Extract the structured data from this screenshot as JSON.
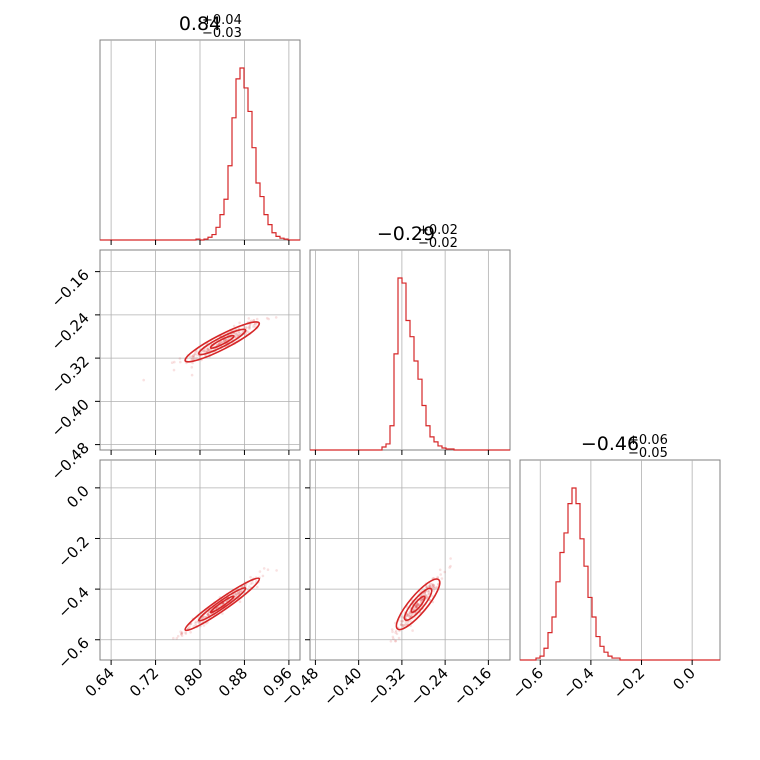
{
  "colors": {
    "accent": "#d62728",
    "grid": "#b0b0b0",
    "frame": "#808080"
  },
  "chart_data": {
    "type": "corner",
    "parameters": [
      {
        "title": {
          "value": "0.84",
          "plus": "+0.04",
          "minus": "−0.03"
        },
        "range": [
          0.62,
          0.98
        ]
      },
      {
        "title": {
          "value": "−0.29",
          "plus": "+0.02",
          "minus": "−0.02"
        },
        "range": [
          -0.49,
          -0.12
        ]
      },
      {
        "title": {
          "value": "−0.46",
          "plus": "+0.06",
          "minus": "−0.05"
        },
        "range": [
          -0.68,
          0.11
        ]
      }
    ],
    "ticks": [
      {
        "values": [
          0.64,
          0.72,
          0.8,
          0.88,
          0.96
        ],
        "labels": [
          "0.64",
          "0.72",
          "0.80",
          "0.88",
          "0.96"
        ]
      },
      {
        "values": [
          -0.48,
          -0.4,
          -0.32,
          -0.24,
          -0.16
        ],
        "labels": [
          "−0.48",
          "−0.40",
          "−0.32",
          "−0.24",
          "−0.16"
        ]
      },
      {
        "values": [
          -0.6,
          -0.4,
          -0.2,
          0.0
        ],
        "labels": [
          "−0.6",
          "−0.4",
          "−0.2",
          "0.0"
        ]
      }
    ],
    "histograms": [
      {
        "bins": [
          0.62,
          0.98
        ],
        "counts": [
          0,
          0,
          0,
          0,
          0,
          0,
          0,
          0,
          0,
          0,
          0,
          0,
          0,
          0,
          0,
          0,
          0,
          0,
          0,
          0,
          0,
          0,
          0,
          0,
          1,
          0,
          1,
          3,
          6,
          14,
          28,
          45,
          82,
          135,
          178,
          190,
          168,
          142,
          102,
          63,
          48,
          28,
          17,
          8,
          4,
          2,
          1,
          0,
          0,
          0
        ]
      },
      {
        "bins": [
          -0.49,
          -0.12
        ],
        "counts": [
          0,
          0,
          0,
          0,
          0,
          0,
          0,
          0,
          0,
          0,
          0,
          0,
          0,
          0,
          0,
          0,
          0,
          0,
          3,
          6,
          24,
          95,
          170,
          165,
          128,
          112,
          88,
          70,
          44,
          24,
          13,
          8,
          4,
          2,
          1,
          1,
          0,
          0,
          0,
          0,
          0,
          0,
          0,
          0,
          0,
          0,
          0,
          0,
          0,
          0
        ]
      },
      {
        "bins": [
          -0.68,
          0.11
        ],
        "counts": [
          0,
          0,
          0,
          0,
          1,
          2,
          6,
          14,
          22,
          40,
          55,
          65,
          80,
          88,
          80,
          62,
          48,
          32,
          22,
          12,
          7,
          4,
          2,
          1,
          1,
          0,
          0,
          0,
          0,
          0,
          0,
          0,
          0,
          0,
          0,
          0,
          0,
          0,
          0,
          0,
          0,
          0,
          0,
          0,
          0,
          0,
          0,
          0,
          0,
          0
        ]
      }
    ],
    "correlations": [
      {
        "x": 0,
        "y": 1,
        "center": [
          0.84,
          -0.29
        ],
        "sx": 0.035,
        "sy": 0.02,
        "rho": 0.92,
        "span": [
          0.77,
          0.96
        ],
        "slope": 0.48
      },
      {
        "x": 0,
        "y": 2,
        "center": [
          0.84,
          -0.46
        ],
        "sx": 0.035,
        "sy": 0.055,
        "rho": 0.97,
        "span": [
          0.75,
          0.96
        ],
        "slope": 1.7
      },
      {
        "x": 1,
        "y": 2,
        "center": [
          -0.29,
          -0.46
        ],
        "sx": 0.02,
        "sy": 0.055,
        "rho": 0.93,
        "span": [
          -0.33,
          -0.22
        ],
        "slope": 2.5
      }
    ]
  }
}
